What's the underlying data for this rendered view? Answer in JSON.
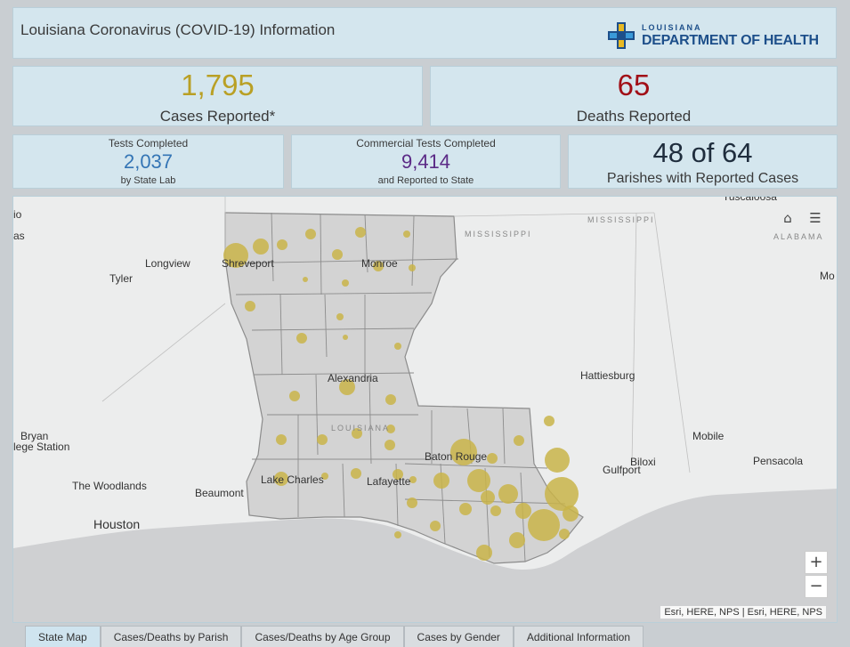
{
  "header": {
    "title": "Louisiana Coronavirus (COVID-19) Information",
    "logo_line1": "LOUISIANA",
    "logo_line2": "DEPARTMENT OF HEALTH"
  },
  "stats": {
    "cases_value": "1,795",
    "cases_label": "Cases Reported*",
    "deaths_value": "65",
    "deaths_label": "Deaths Reported",
    "tests_top": "Tests Completed",
    "tests_value": "2,037",
    "tests_bottom": "by State Lab",
    "commercial_top": "Commercial Tests Completed",
    "commercial_value": "9,414",
    "commercial_bottom": "and Reported to State",
    "parishes_value": "48 of 64",
    "parishes_label": "Parishes with Reported Cases"
  },
  "map": {
    "labels": {
      "shreveport": "Shreveport",
      "monroe": "Monroe",
      "longview": "Longview",
      "tyler": "Tyler",
      "alexandria": "Alexandria",
      "hattiesburg": "Hattiesburg",
      "baton_rouge": "Baton Rouge",
      "lake_charles": "Lake Charles",
      "lafayette": "Lafayette",
      "beaumont": "Beaumont",
      "houston": "Houston",
      "the_woodlands": "The Woodlands",
      "bryan": "Bryan",
      "college_station": "lege Station",
      "mobile": "Mobile",
      "pensacola": "Pensacola",
      "biloxi": "Biloxi",
      "gulfport": "Gulfport",
      "tuscaloosa": "Tuscaloosa",
      "mo": "Mo",
      "io": "io",
      "as": "as",
      "mississippi_1": "MISSISSIPPI",
      "mississippi_2": "MISSISSIPPI",
      "alabama": "ALABAMA",
      "louisiana": "LOUISIANA"
    },
    "attribution": "Esri, HERE, NPS | Esri, HERE, NPS",
    "zoom_in": "+",
    "zoom_out": "−",
    "home_icon": "⌂",
    "legend_icon": "☰",
    "bubble_color": "#c9b449"
  },
  "tabs": [
    "State Map",
    "Cases/Deaths by Parish",
    "Cases/Deaths by Age Group",
    "Cases by Gender",
    "Additional Information"
  ]
}
